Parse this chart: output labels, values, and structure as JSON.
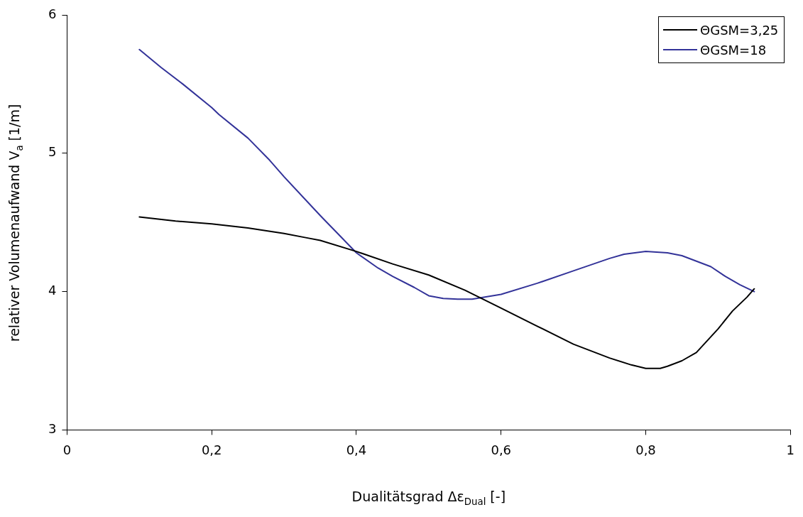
{
  "chart_data": {
    "type": "line",
    "xlabel": "Dualitätsgrad Δε$_{Dual}$ [-]",
    "ylabel": "relativer Volumenaufwand V$_{a}$ [1/m]",
    "xlim": [
      0,
      1
    ],
    "xticks": [
      0,
      {
        "value": 0.2,
        "label": "0,2"
      },
      {
        "value": 0.4,
        "label": "0,4"
      },
      {
        "value": 0.6,
        "label": "0,6"
      },
      {
        "value": 0.8,
        "label": "0,8"
      },
      1
    ],
    "ylim": [
      3,
      6
    ],
    "yticks": [
      3,
      4,
      5,
      6
    ],
    "grid": false,
    "legend": "top right",
    "marker": "none",
    "line_style": "solid",
    "series": [
      {
        "name": "ΘGSM=3,25",
        "color": "#000000",
        "x": [
          0.1,
          0.15,
          0.2,
          0.25,
          0.3,
          0.33,
          0.35,
          0.4,
          0.45,
          0.5,
          0.55,
          0.6,
          0.65,
          0.7,
          0.75,
          0.78,
          0.8,
          0.82,
          0.83,
          0.85,
          0.87,
          0.9,
          0.92,
          0.94,
          0.95
        ],
        "values": [
          4.54,
          4.51,
          4.49,
          4.46,
          4.42,
          4.39,
          4.37,
          4.29,
          4.2,
          4.12,
          4.01,
          3.88,
          3.75,
          3.62,
          3.52,
          3.47,
          3.445,
          3.445,
          3.46,
          3.5,
          3.56,
          3.73,
          3.86,
          3.96,
          4.02
        ]
      },
      {
        "name": "ΘGSM=18",
        "color": "#333399",
        "x": [
          0.1,
          0.13,
          0.16,
          0.2,
          0.21,
          0.25,
          0.28,
          0.3,
          0.35,
          0.4,
          0.43,
          0.45,
          0.48,
          0.5,
          0.52,
          0.54,
          0.56,
          0.6,
          0.65,
          0.7,
          0.75,
          0.77,
          0.8,
          0.83,
          0.85,
          0.87,
          0.89,
          0.91,
          0.93,
          0.95
        ],
        "values": [
          5.75,
          5.62,
          5.5,
          5.33,
          5.28,
          5.11,
          4.95,
          4.83,
          4.55,
          4.28,
          4.17,
          4.11,
          4.03,
          3.97,
          3.95,
          3.945,
          3.945,
          3.98,
          4.06,
          4.15,
          4.24,
          4.27,
          4.29,
          4.28,
          4.26,
          4.22,
          4.18,
          4.11,
          4.05,
          4.0
        ]
      }
    ]
  }
}
